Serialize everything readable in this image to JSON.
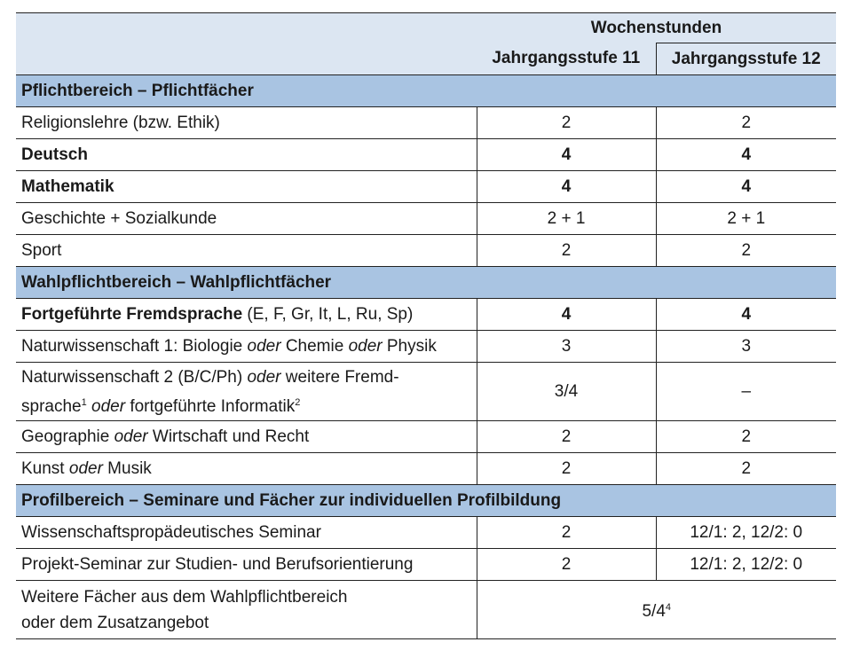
{
  "header": {
    "group": "Wochenstunden",
    "columns": [
      "Jahrgangsstufe 11",
      "Jahrgangsstufe 12"
    ]
  },
  "sections": [
    {
      "title": "Pflichtbereich – Pflichtfächer",
      "rows": [
        {
          "lines": [
            [
              {
                "text": "Religionslehre (bzw. Ethik)"
              }
            ]
          ],
          "values": [
            "2",
            "2"
          ]
        },
        {
          "lines": [
            [
              {
                "text": "Deutsch",
                "style": "bold"
              }
            ]
          ],
          "values": [
            "4",
            "4"
          ],
          "bold": true
        },
        {
          "lines": [
            [
              {
                "text": "Mathematik",
                "style": "bold"
              }
            ]
          ],
          "values": [
            "4",
            "4"
          ],
          "bold": true
        },
        {
          "lines": [
            [
              {
                "text": "Geschichte + Sozialkunde"
              }
            ]
          ],
          "values": [
            "2 + 1",
            "2 + 1"
          ]
        },
        {
          "lines": [
            [
              {
                "text": "Sport"
              }
            ]
          ],
          "values": [
            "2",
            "2"
          ]
        }
      ]
    },
    {
      "title": "Wahlpflichtbereich – Wahlpflichtfächer",
      "rows": [
        {
          "lines": [
            [
              {
                "text": "Fortgeführte Fremdsprache",
                "style": "bold"
              },
              {
                "text": " (E, F, Gr, It, L, Ru, Sp)"
              }
            ]
          ],
          "values": [
            "4",
            "4"
          ],
          "bold": true
        },
        {
          "lines": [
            [
              {
                "text": "Naturwissenschaft 1: Biologie "
              },
              {
                "text": "oder",
                "style": "italic"
              },
              {
                "text": " Chemie "
              },
              {
                "text": "oder",
                "style": "italic"
              },
              {
                "text": " Physik"
              }
            ]
          ],
          "values": [
            "3",
            "3"
          ]
        },
        {
          "lines": [
            [
              {
                "text": "Naturwissenschaft 2 (B/C/Ph) "
              },
              {
                "text": "oder",
                "style": "italic"
              },
              {
                "text": " weitere Fremd-"
              }
            ],
            [
              {
                "text": "sprache"
              },
              {
                "text": "1",
                "style": "sup"
              },
              {
                "text": " "
              },
              {
                "text": "oder",
                "style": "italic"
              },
              {
                "text": " fortgeführte Informatik"
              },
              {
                "text": "2",
                "style": "sup"
              }
            ]
          ],
          "values": [
            "3/4",
            "–"
          ]
        },
        {
          "lines": [
            [
              {
                "text": "Geographie "
              },
              {
                "text": "oder",
                "style": "italic"
              },
              {
                "text": " Wirtschaft und Recht"
              }
            ]
          ],
          "values": [
            "2",
            "2"
          ]
        },
        {
          "lines": [
            [
              {
                "text": "Kunst "
              },
              {
                "text": "oder",
                "style": "italic"
              },
              {
                "text": " Musik"
              }
            ]
          ],
          "values": [
            "2",
            "2"
          ]
        }
      ]
    },
    {
      "title": "Profilbereich – Seminare und Fächer zur individuellen Profilbildung",
      "rows": [
        {
          "lines": [
            [
              {
                "text": "Wissenschaftspropädeutisches Seminar"
              }
            ]
          ],
          "values": [
            "2",
            "12/1: 2, 12/2: 0"
          ]
        },
        {
          "lines": [
            [
              {
                "text": "Projekt-Seminar zur Studien- und Berufsorientierung"
              }
            ]
          ],
          "values": [
            "2",
            "12/1: 2, 12/2: 0"
          ]
        },
        {
          "lines": [
            [
              {
                "text": "Weitere Fächer aus dem Wahlpflichtbereich"
              }
            ],
            [
              {
                "text": "oder dem Zusatzangebot"
              }
            ]
          ],
          "span_value": [
            {
              "text": "5/4"
            },
            {
              "text": "4",
              "style": "sup"
            }
          ]
        }
      ]
    }
  ]
}
